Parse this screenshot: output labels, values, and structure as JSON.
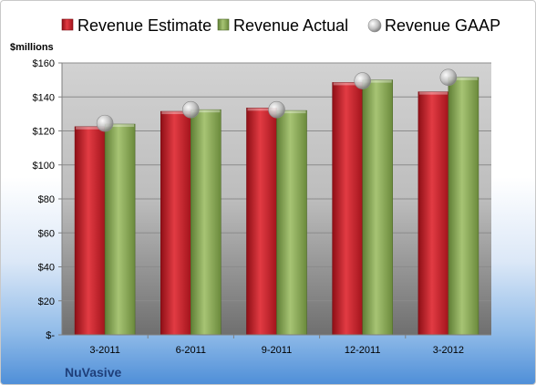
{
  "chart_data": {
    "type": "bar",
    "title": "",
    "ylabel": "$millions",
    "xlabel": "",
    "company": "NuVasive",
    "categories": [
      "3-2011",
      "6-2011",
      "9-2011",
      "12-2011",
      "3-2012"
    ],
    "ylim": [
      0,
      160
    ],
    "yticks": [
      0,
      20,
      40,
      60,
      80,
      100,
      120,
      140,
      160
    ],
    "ytick_labels": [
      "$-",
      "$20",
      "$40",
      "$60",
      "$80",
      "$100",
      "$120",
      "$140",
      "$160"
    ],
    "grid": true,
    "legend_position": "top",
    "series": [
      {
        "name": "Revenue Estimate",
        "kind": "bar",
        "color": "#c8202a",
        "values": [
          122.5,
          131.5,
          133.5,
          148.5,
          143
        ]
      },
      {
        "name": "Revenue Actual",
        "kind": "bar",
        "color": "#8fae5a",
        "values": [
          124,
          132.5,
          132,
          150,
          151.5
        ]
      },
      {
        "name": "Revenue GAAP",
        "kind": "marker",
        "color": "#bfbfbf",
        "values": [
          124.5,
          132.5,
          132.5,
          149.5,
          151.5
        ]
      }
    ]
  }
}
